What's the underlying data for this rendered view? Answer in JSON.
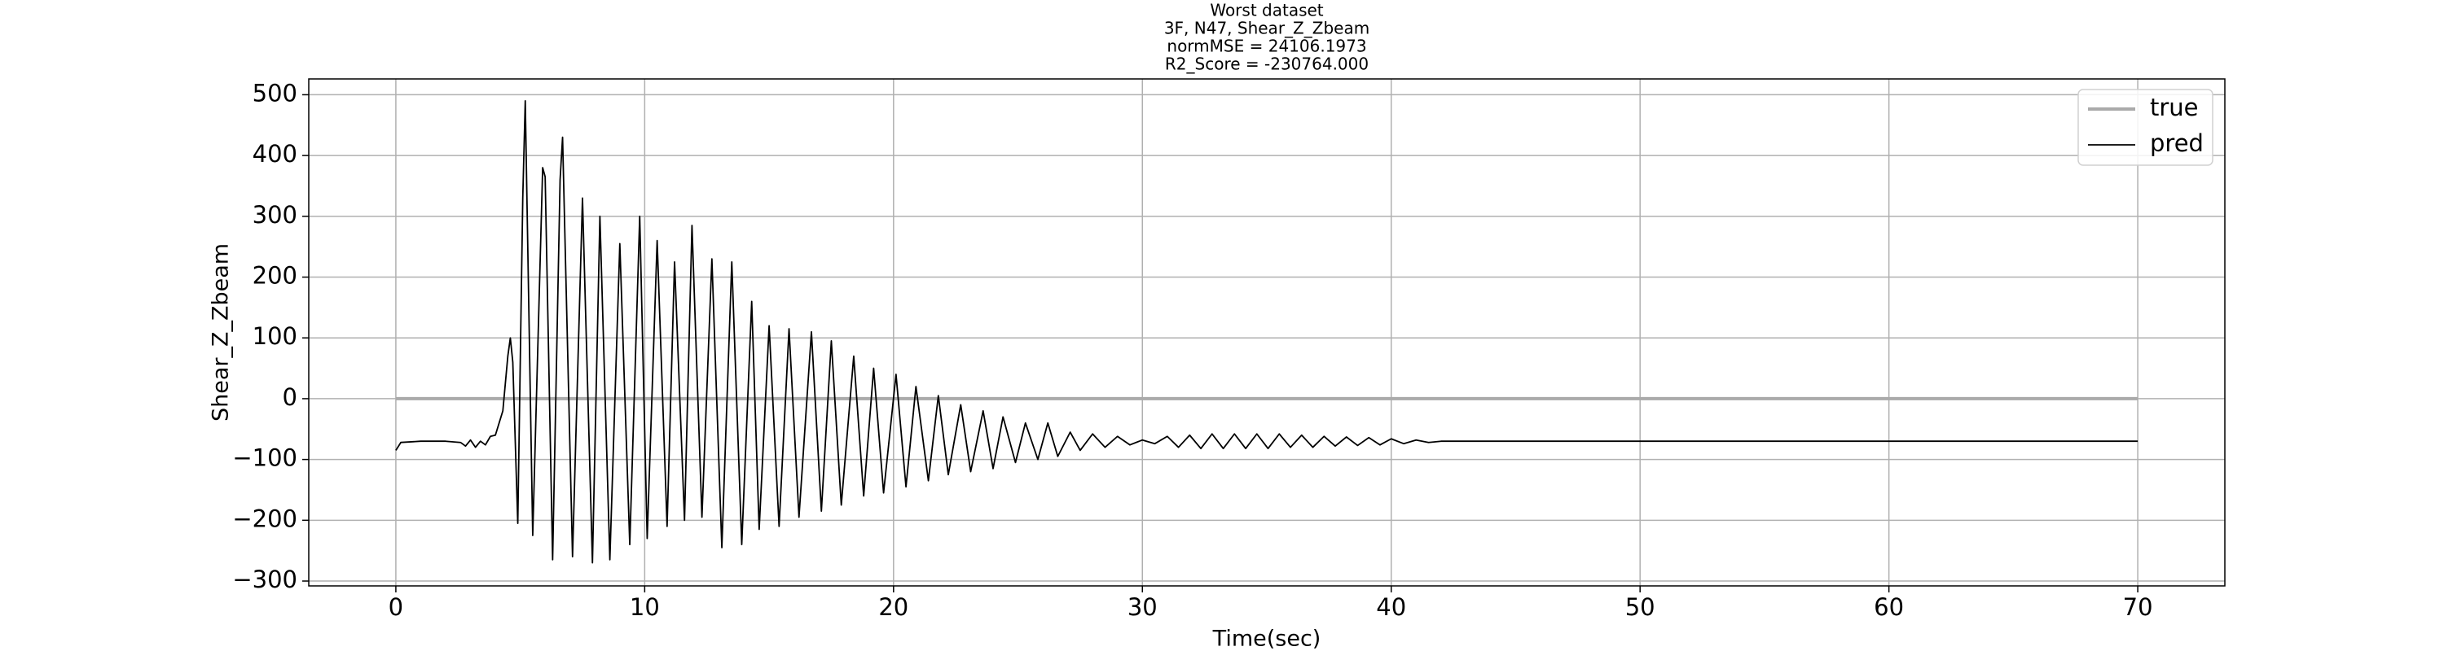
{
  "chart_data": {
    "type": "line",
    "title_lines": [
      "Worst dataset",
      "3F, N47, Shear_Z_Zbeam",
      "normMSE = 24106.1973",
      "R2_Score = -230764.000"
    ],
    "xlabel": "Time(sec)",
    "ylabel": "Shear_Z_Zbeam",
    "xlim": [
      -3.5,
      73.5
    ],
    "ylim": [
      -308,
      526
    ],
    "xticks": [
      0,
      10,
      20,
      30,
      40,
      50,
      60,
      70
    ],
    "yticks": [
      {
        "value": -300,
        "label": "−300"
      },
      {
        "value": -200,
        "label": "−200"
      },
      {
        "value": -100,
        "label": "−100"
      },
      0,
      100,
      200,
      300,
      400,
      500
    ],
    "grid": true,
    "legend": "upper right",
    "series": [
      {
        "name": "true",
        "color": "#aaaaaa",
        "x": [
          0,
          70
        ],
        "values": [
          0,
          0
        ]
      },
      {
        "name": "pred",
        "color": "#000000",
        "x": [
          0,
          0.2,
          1,
          2,
          2.6,
          2.8,
          3,
          3.2,
          3.4,
          3.6,
          3.8,
          4,
          4.3,
          4.5,
          4.6,
          4.7,
          4.9,
          5.1,
          5.2,
          5.5,
          5.9,
          6.0,
          6.3,
          6.6,
          6.7,
          7.1,
          7.5,
          7.9,
          8.2,
          8.6,
          9.0,
          9.4,
          9.8,
          10.1,
          10.5,
          10.9,
          11.2,
          11.6,
          11.9,
          12.3,
          12.7,
          13.1,
          13.5,
          13.9,
          14.3,
          14.6,
          15.0,
          15.4,
          15.8,
          16.2,
          16.7,
          17.1,
          17.5,
          17.9,
          18.4,
          18.8,
          19.2,
          19.6,
          20.1,
          20.5,
          20.9,
          21.4,
          21.8,
          22.2,
          22.7,
          23.1,
          23.6,
          24.0,
          24.4,
          24.9,
          25.3,
          25.8,
          26.2,
          26.6,
          27.1,
          27.5,
          28,
          28.5,
          29,
          29.5,
          30,
          30.5,
          31,
          31.45,
          31.9,
          32.35,
          32.8,
          33.25,
          33.7,
          34.15,
          34.6,
          35.05,
          35.5,
          35.95,
          36.4,
          36.85,
          37.3,
          37.75,
          38.2,
          38.65,
          39.1,
          39.55,
          40,
          40.5,
          41,
          41.5,
          42,
          50,
          60,
          70
        ],
        "values": [
          -85,
          -72,
          -70,
          -70,
          -72,
          -78,
          -68,
          -80,
          -70,
          -76,
          -62,
          -60,
          -20,
          70,
          100,
          60,
          -205,
          330,
          490,
          -225,
          380,
          365,
          -265,
          360,
          430,
          -260,
          330,
          -270,
          300,
          -265,
          255,
          -240,
          300,
          -230,
          260,
          -210,
          225,
          -200,
          285,
          -195,
          230,
          -245,
          225,
          -240,
          160,
          -215,
          120,
          -210,
          115,
          -195,
          110,
          -185,
          95,
          -175,
          70,
          -160,
          50,
          -155,
          40,
          -145,
          20,
          -135,
          5,
          -125,
          -10,
          -120,
          -20,
          -115,
          -30,
          -105,
          -40,
          -100,
          -40,
          -95,
          -55,
          -85,
          -58,
          -80,
          -62,
          -76,
          -68,
          -74,
          -62,
          -80,
          -60,
          -82,
          -58,
          -82,
          -58,
          -82,
          -58,
          -82,
          -58,
          -80,
          -60,
          -80,
          -62,
          -78,
          -63,
          -77,
          -64,
          -76,
          -66,
          -74,
          -68,
          -72,
          -70,
          -70,
          -70,
          -70
        ]
      }
    ]
  }
}
